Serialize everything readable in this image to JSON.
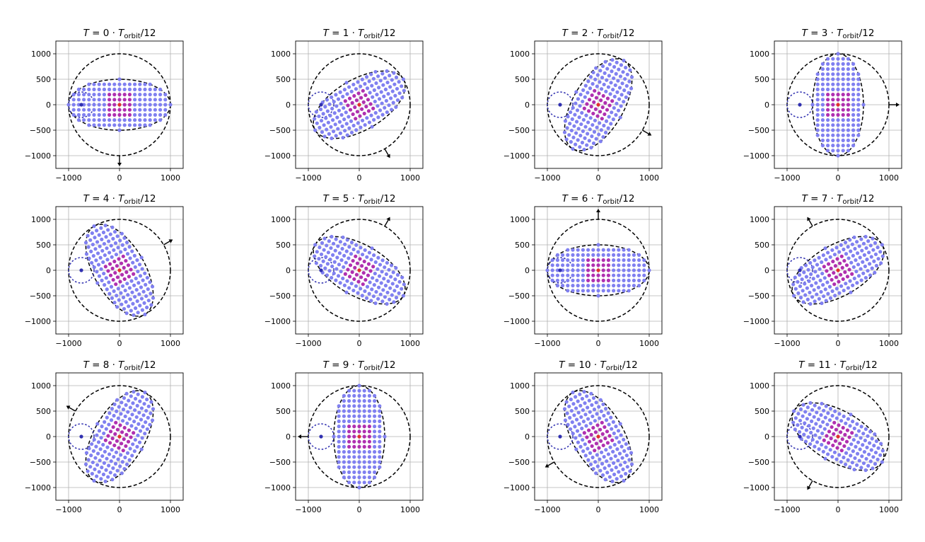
{
  "figure": {
    "title_prefix": "T = ",
    "title_middle": " · ",
    "title_T": "T",
    "title_sub": "orbit",
    "title_suffix": "/12",
    "colors": {
      "particle": "#8080f0",
      "particle_inner": "#b030b0",
      "particle_center": "#e03030",
      "small_body": "#3030b0",
      "dashed": "#000000",
      "grid": "#b0b0b0"
    }
  },
  "chart_data": {
    "type": "scatter",
    "layout": "3x4 grid",
    "xlim": [
      -1250,
      1250
    ],
    "ylim": [
      -1250,
      1250
    ],
    "xticks": [
      -1000,
      0,
      1000
    ],
    "yticks": [
      -1000,
      -500,
      0,
      500,
      1000
    ],
    "xtick_labels": [
      "−1000",
      "0",
      "1000"
    ],
    "ytick_labels": [
      "−1000",
      "−500",
      "0",
      "500",
      "1000"
    ],
    "grid": true,
    "orbit_circle_radius": 1000,
    "ellipse_semi_major": 1000,
    "ellipse_semi_minor": 500,
    "small_body_radius": 250,
    "small_body_distance": 750,
    "grid_spacing": 100,
    "panels": [
      {
        "index": 0,
        "title_n": "0",
        "phase_deg": 0
      },
      {
        "index": 1,
        "title_n": "1",
        "phase_deg": 30
      },
      {
        "index": 2,
        "title_n": "2",
        "phase_deg": 60
      },
      {
        "index": 3,
        "title_n": "3",
        "phase_deg": 90
      },
      {
        "index": 4,
        "title_n": "4",
        "phase_deg": 120
      },
      {
        "index": 5,
        "title_n": "5",
        "phase_deg": 150
      },
      {
        "index": 6,
        "title_n": "6",
        "phase_deg": 180
      },
      {
        "index": 7,
        "title_n": "7",
        "phase_deg": 210
      },
      {
        "index": 8,
        "title_n": "8",
        "phase_deg": 240
      },
      {
        "index": 9,
        "title_n": "9",
        "phase_deg": 270
      },
      {
        "index": 10,
        "title_n": "10",
        "phase_deg": 300
      },
      {
        "index": 11,
        "title_n": "11",
        "phase_deg": 330
      }
    ]
  }
}
